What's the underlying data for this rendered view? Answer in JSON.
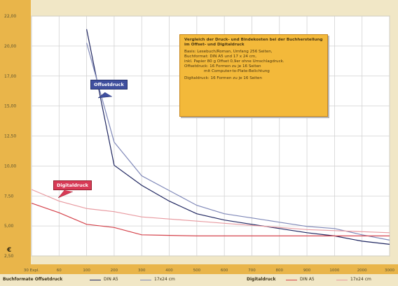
{
  "chart_data": {
    "type": "line",
    "currency_symbol": "€",
    "y_ticks": [
      "22,00",
      "20,00",
      "17,00",
      "15,00",
      "12,50",
      "10,00",
      "7,50",
      "5,00",
      "2,50"
    ],
    "x_categories": [
      "30 Expl.",
      "60",
      "100",
      "200",
      "300",
      "400",
      "500",
      "600",
      "700",
      "800",
      "900",
      "1000",
      "2000",
      "3000"
    ],
    "series": [
      {
        "color": "#1f2660",
        "values": [
          null,
          null,
          21.5,
          8.6,
          6.7,
          5.2,
          4.0,
          3.4,
          3.0,
          2.6,
          2.2,
          1.9,
          1.4,
          1.1
        ]
      },
      {
        "color": "#7f88b8",
        "values": [
          null,
          null,
          20.2,
          10.8,
          7.6,
          6.2,
          4.8,
          4.0,
          3.6,
          3.2,
          2.8,
          2.6,
          2.0,
          1.5
        ]
      },
      {
        "color": "#d5424b",
        "values": [
          5.0,
          4.1,
          3.0,
          2.7,
          2.0,
          1.95,
          1.9,
          1.9,
          1.9,
          1.9,
          1.9,
          1.9,
          1.9,
          1.9
        ]
      },
      {
        "color": "#e89aa0",
        "values": [
          6.3,
          5.2,
          4.5,
          4.2,
          3.7,
          3.5,
          3.3,
          3.1,
          2.9,
          2.7,
          2.5,
          2.4,
          2.3,
          2.2
        ]
      }
    ]
  },
  "infobox": {
    "title": "Vergleich der Druck- und Bindekosten bei der Buchherstellung im Offset- und Digitaldruck",
    "lines": [
      "Basis: Lesebuch/Roman, Umfang 256 Seiten,",
      "Buchformat: DIN A5 und 17 x 24 cm,",
      "inkl. Papier 80 g Offset 0,9er ohne Umschlagdruck.",
      "Offsetdruck: 16 Formen zu je 16 Seiten",
      "mit Computer-to-Plate-Belichtung",
      "Digitaldruck: 16 Formen zu je 16 Seiten"
    ]
  },
  "callouts": {
    "offset": "Offsetdruck",
    "digital": "Digitaldruck"
  },
  "legend": {
    "offset_title": "Buchformate Offsetdruck",
    "offset_a5": "DIN A5",
    "offset_1724": "17x24 cm",
    "digital_title": "Digitaldruck",
    "digital_a5": "DIN A5",
    "digital_1724": "17x24 cm"
  }
}
